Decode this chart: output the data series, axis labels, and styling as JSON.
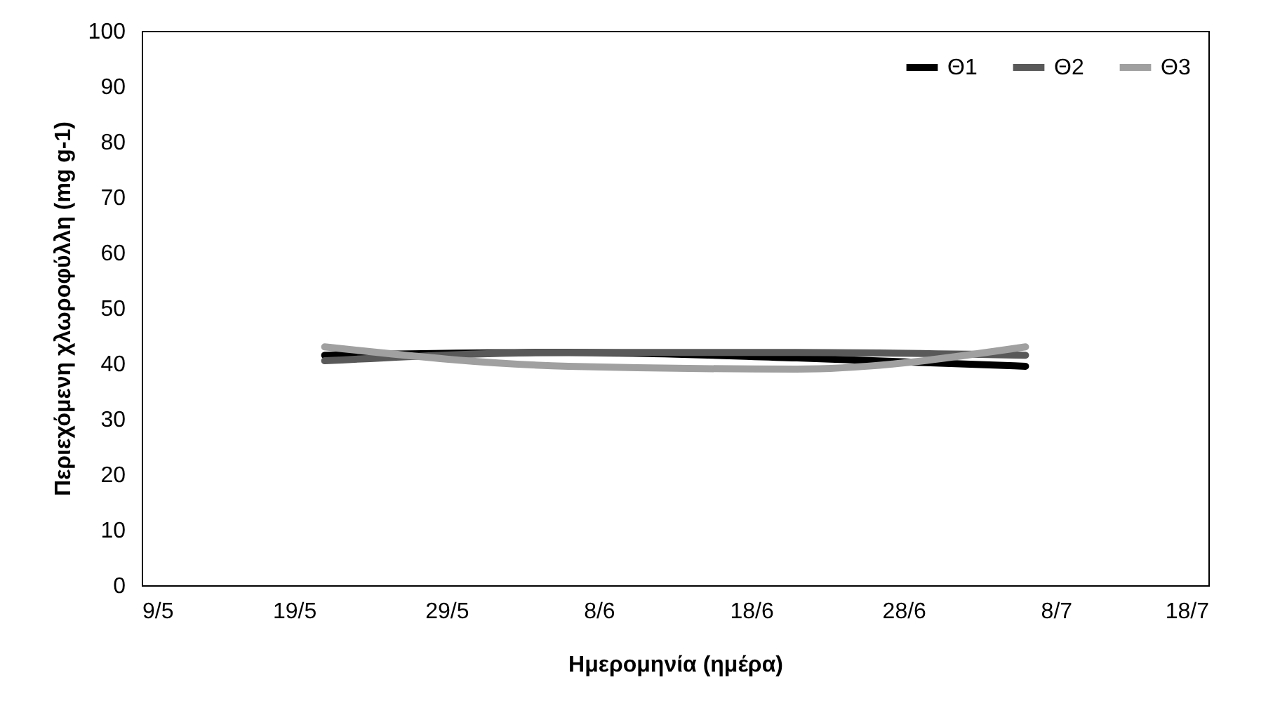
{
  "chart_data": {
    "type": "line",
    "xlabel": "Ημερομηνία (ημέρα)",
    "ylabel": "Περιεχόμενη χλωροφύλλη (mg g-1)",
    "x": [
      "--05-21",
      "--06-06",
      "--06-21",
      "--07-06"
    ],
    "series": [
      {
        "name": "Θ1",
        "color": "#000000",
        "values": [
          41.5,
          42,
          41,
          39.5
        ]
      },
      {
        "name": "Θ2",
        "color": "#595959",
        "values": [
          40.5,
          42,
          42,
          41.5
        ]
      },
      {
        "name": "Θ3",
        "color": "#a0a0a0",
        "values": [
          43,
          39.5,
          39,
          43
        ]
      }
    ],
    "xlim": [
      "--05-09",
      "--07-18"
    ],
    "xticks": [
      {
        "value": "--05-09",
        "label": "9/5"
      },
      {
        "value": "--05-19",
        "label": "19/5"
      },
      {
        "value": "--05-29",
        "label": "29/5"
      },
      {
        "value": "--06-08",
        "label": "8/6"
      },
      {
        "value": "--06-18",
        "label": "18/6"
      },
      {
        "value": "--06-28",
        "label": "28/6"
      },
      {
        "value": "--07-08",
        "label": "8/7"
      },
      {
        "value": "--07-18",
        "label": "18/7"
      }
    ],
    "ylim": [
      0,
      100
    ],
    "yticks": [
      0,
      10,
      20,
      30,
      40,
      50,
      60,
      70,
      80,
      90,
      100
    ],
    "grid": false,
    "legend": "top right",
    "marker": "none",
    "line_style": "solid"
  }
}
